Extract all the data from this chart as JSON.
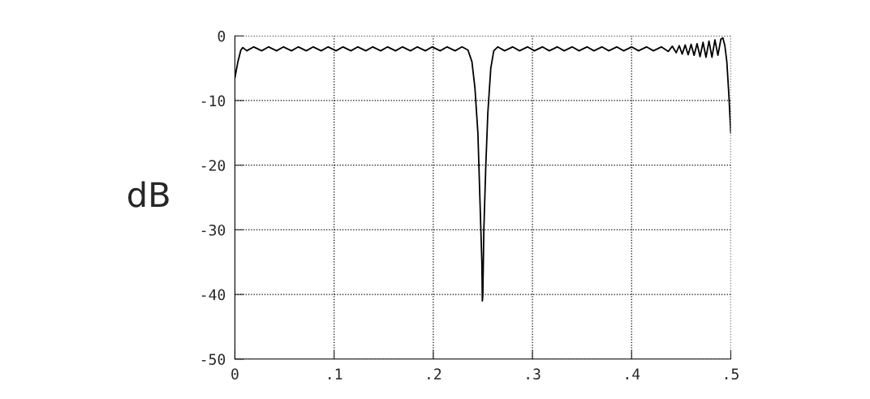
{
  "chart_data": {
    "type": "line",
    "ylabel": "dB",
    "x": [
      0,
      0.003,
      0.006,
      0.008,
      0.012,
      0.019,
      0.027,
      0.034,
      0.042,
      0.049,
      0.057,
      0.064,
      0.072,
      0.079,
      0.087,
      0.094,
      0.102,
      0.109,
      0.117,
      0.124,
      0.132,
      0.139,
      0.147,
      0.154,
      0.162,
      0.169,
      0.177,
      0.184,
      0.192,
      0.199,
      0.207,
      0.214,
      0.222,
      0.229,
      0.235,
      0.239,
      0.242,
      0.245,
      0.247,
      0.249,
      0.2495,
      0.25,
      0.251,
      0.253,
      0.255,
      0.258,
      0.261,
      0.265,
      0.272,
      0.28,
      0.287,
      0.295,
      0.302,
      0.31,
      0.317,
      0.325,
      0.332,
      0.34,
      0.347,
      0.355,
      0.362,
      0.37,
      0.377,
      0.385,
      0.392,
      0.4,
      0.407,
      0.415,
      0.422,
      0.43,
      0.437,
      0.441,
      0.445,
      0.448,
      0.451,
      0.454,
      0.457,
      0.46,
      0.463,
      0.466,
      0.469,
      0.472,
      0.475,
      0.478,
      0.481,
      0.484,
      0.487,
      0.49,
      0.492,
      0.494,
      0.496,
      0.498,
      0.5
    ],
    "series": [
      {
        "color": "#000000",
        "values": [
          -6.5,
          -4,
          -2.2,
          -1.8,
          -2.3,
          -1.7,
          -2.3,
          -1.7,
          -2.3,
          -1.7,
          -2.3,
          -1.7,
          -2.3,
          -1.7,
          -2.3,
          -1.7,
          -2.3,
          -1.7,
          -2.3,
          -1.7,
          -2.3,
          -1.7,
          -2.3,
          -1.7,
          -2.3,
          -1.7,
          -2.3,
          -1.7,
          -2.3,
          -1.7,
          -2.3,
          -1.7,
          -2.3,
          -1.7,
          -2.2,
          -4,
          -8,
          -15,
          -25,
          -35,
          -41,
          -40,
          -30,
          -20,
          -12,
          -5,
          -2.3,
          -1.7,
          -2.3,
          -1.7,
          -2.3,
          -1.7,
          -2.3,
          -1.7,
          -2.3,
          -1.7,
          -2.3,
          -1.7,
          -2.3,
          -1.7,
          -2.3,
          -1.7,
          -2.3,
          -1.7,
          -2.3,
          -1.7,
          -2.3,
          -1.7,
          -2.3,
          -1.7,
          -2.4,
          -1.6,
          -2.6,
          -1.5,
          -2.8,
          -1.4,
          -2.9,
          -1.3,
          -3,
          -1.2,
          -3.2,
          -1,
          -3.3,
          -0.8,
          -3.3,
          -0.6,
          -3,
          -0.5,
          -0.3,
          -1.5,
          -4,
          -9,
          -15
        ]
      }
    ],
    "xlim": [
      0,
      0.5
    ],
    "ylim": [
      -50,
      0
    ],
    "xticks": [
      {
        "value": 0,
        "label": "0"
      },
      {
        "value": 0.1,
        "label": ".1"
      },
      {
        "value": 0.2,
        "label": ".2"
      },
      {
        "value": 0.3,
        "label": ".3"
      },
      {
        "value": 0.4,
        "label": ".4"
      },
      {
        "value": 0.5,
        "label": ".5"
      }
    ],
    "yticks": [
      {
        "value": 0,
        "label": "0"
      },
      {
        "value": -10,
        "label": "-10"
      },
      {
        "value": -20,
        "label": "-20"
      },
      {
        "value": -30,
        "label": "-30"
      },
      {
        "value": -40,
        "label": "-40"
      },
      {
        "value": -50,
        "label": "-50"
      }
    ],
    "grid": true,
    "marker": "none",
    "line_style": "solid"
  }
}
